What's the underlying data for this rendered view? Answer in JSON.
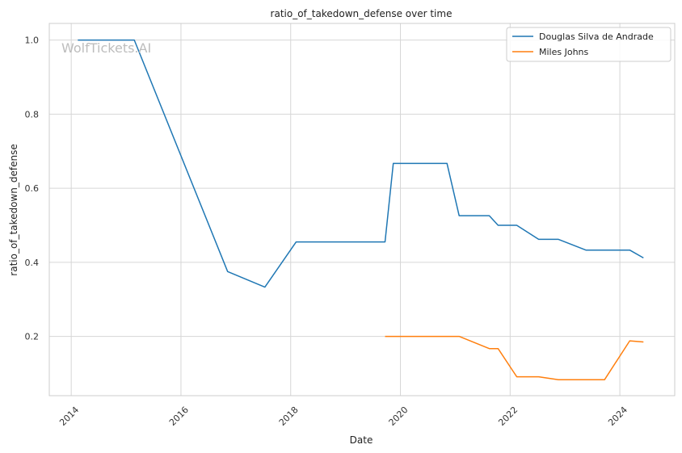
{
  "chart_data": {
    "type": "line",
    "title": "ratio_of_takedown_defense over time",
    "xlabel": "Date",
    "ylabel": "ratio_of_takedown_defense",
    "watermark": "WolfTickets.AI",
    "xlim": [
      2013.6,
      2025.0
    ],
    "ylim": [
      0.04,
      1.045
    ],
    "x_ticks": [
      2014,
      2016,
      2018,
      2020,
      2022,
      2024
    ],
    "x_tick_labels": [
      "2014",
      "2016",
      "2018",
      "2020",
      "2022",
      "2024"
    ],
    "y_ticks": [
      0.2,
      0.4,
      0.6,
      0.8,
      1.0
    ],
    "y_tick_labels": [
      "0.2",
      "0.4",
      "0.6",
      "0.8",
      "1.0"
    ],
    "grid": true,
    "legend_position": "top-right",
    "series": [
      {
        "name": "Douglas Silva de Andrade",
        "color": "#1f77b4",
        "x": [
          2014.12,
          2015.15,
          2016.85,
          2017.53,
          2018.1,
          2019.72,
          2019.87,
          2020.85,
          2021.07,
          2021.62,
          2021.78,
          2022.12,
          2022.52,
          2022.88,
          2023.38,
          2024.18,
          2024.43
        ],
        "y": [
          1.0,
          1.0,
          0.375,
          0.333,
          0.455,
          0.455,
          0.667,
          0.667,
          0.526,
          0.526,
          0.5,
          0.5,
          0.462,
          0.462,
          0.433,
          0.433,
          0.412
        ]
      },
      {
        "name": "Miles Johns",
        "color": "#ff7f0e",
        "x": [
          2019.72,
          2021.07,
          2021.62,
          2021.78,
          2022.12,
          2022.52,
          2022.88,
          2023.72,
          2024.18,
          2024.43
        ],
        "y": [
          0.2,
          0.2,
          0.167,
          0.167,
          0.091,
          0.091,
          0.083,
          0.083,
          0.188,
          0.185
        ]
      }
    ]
  }
}
